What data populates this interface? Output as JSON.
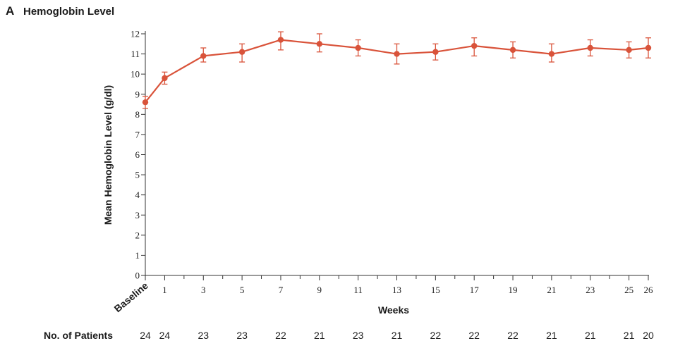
{
  "panel": {
    "letter": "A",
    "title": "Hemoglobin Level"
  },
  "colors": {
    "series": "#d9533a",
    "axis": "#333333"
  },
  "chart_data": {
    "type": "line",
    "title": "Hemoglobin Level",
    "xlabel": "Weeks",
    "ylabel": "Mean Hemoglobin Level (g/dl)",
    "ylim": [
      0,
      12
    ],
    "xlim": [
      0,
      26
    ],
    "yticks": [
      0,
      1,
      2,
      3,
      4,
      5,
      6,
      7,
      8,
      9,
      10,
      11,
      12
    ],
    "xticks": [
      {
        "x": 0,
        "label": "Baseline"
      },
      {
        "x": 1,
        "label": "1"
      },
      {
        "x": 3,
        "label": "3"
      },
      {
        "x": 5,
        "label": "5"
      },
      {
        "x": 7,
        "label": "7"
      },
      {
        "x": 9,
        "label": "9"
      },
      {
        "x": 11,
        "label": "11"
      },
      {
        "x": 13,
        "label": "13"
      },
      {
        "x": 15,
        "label": "15"
      },
      {
        "x": 17,
        "label": "17"
      },
      {
        "x": 19,
        "label": "19"
      },
      {
        "x": 21,
        "label": "21"
      },
      {
        "x": 23,
        "label": "23"
      },
      {
        "x": 25,
        "label": "25"
      },
      {
        "x": 26,
        "label": "26"
      }
    ],
    "minor_xticks": [
      2,
      4,
      6,
      8,
      10,
      12,
      14,
      16,
      18,
      20,
      22,
      24
    ],
    "series": [
      {
        "points": [
          {
            "x": 0,
            "y": 8.6,
            "low": 8.3,
            "high": 8.9
          },
          {
            "x": 1,
            "y": 9.8,
            "low": 9.5,
            "high": 10.1
          },
          {
            "x": 3,
            "y": 10.9,
            "low": 10.6,
            "high": 11.3
          },
          {
            "x": 5,
            "y": 11.1,
            "low": 10.6,
            "high": 11.5
          },
          {
            "x": 7,
            "y": 11.7,
            "low": 11.2,
            "high": 12.1
          },
          {
            "x": 9,
            "y": 11.5,
            "low": 11.1,
            "high": 12.0
          },
          {
            "x": 11,
            "y": 11.3,
            "low": 10.9,
            "high": 11.7
          },
          {
            "x": 13,
            "y": 11.0,
            "low": 10.5,
            "high": 11.5
          },
          {
            "x": 15,
            "y": 11.1,
            "low": 10.7,
            "high": 11.5
          },
          {
            "x": 17,
            "y": 11.4,
            "low": 10.9,
            "high": 11.8
          },
          {
            "x": 19,
            "y": 11.2,
            "low": 10.8,
            "high": 11.6
          },
          {
            "x": 21,
            "y": 11.0,
            "low": 10.6,
            "high": 11.5
          },
          {
            "x": 23,
            "y": 11.3,
            "low": 10.9,
            "high": 11.7
          },
          {
            "x": 25,
            "y": 11.2,
            "low": 10.8,
            "high": 11.6
          },
          {
            "x": 26,
            "y": 11.3,
            "low": 10.8,
            "high": 11.8
          }
        ]
      }
    ],
    "patients": {
      "title": "No. of Patients",
      "counts": [
        {
          "x": 0,
          "n": "24"
        },
        {
          "x": 1,
          "n": "24"
        },
        {
          "x": 3,
          "n": "23"
        },
        {
          "x": 5,
          "n": "23"
        },
        {
          "x": 7,
          "n": "22"
        },
        {
          "x": 9,
          "n": "21"
        },
        {
          "x": 11,
          "n": "23"
        },
        {
          "x": 13,
          "n": "21"
        },
        {
          "x": 15,
          "n": "22"
        },
        {
          "x": 17,
          "n": "22"
        },
        {
          "x": 19,
          "n": "22"
        },
        {
          "x": 21,
          "n": "21"
        },
        {
          "x": 23,
          "n": "21"
        },
        {
          "x": 25,
          "n": "21"
        },
        {
          "x": 26,
          "n": "20"
        }
      ]
    }
  }
}
